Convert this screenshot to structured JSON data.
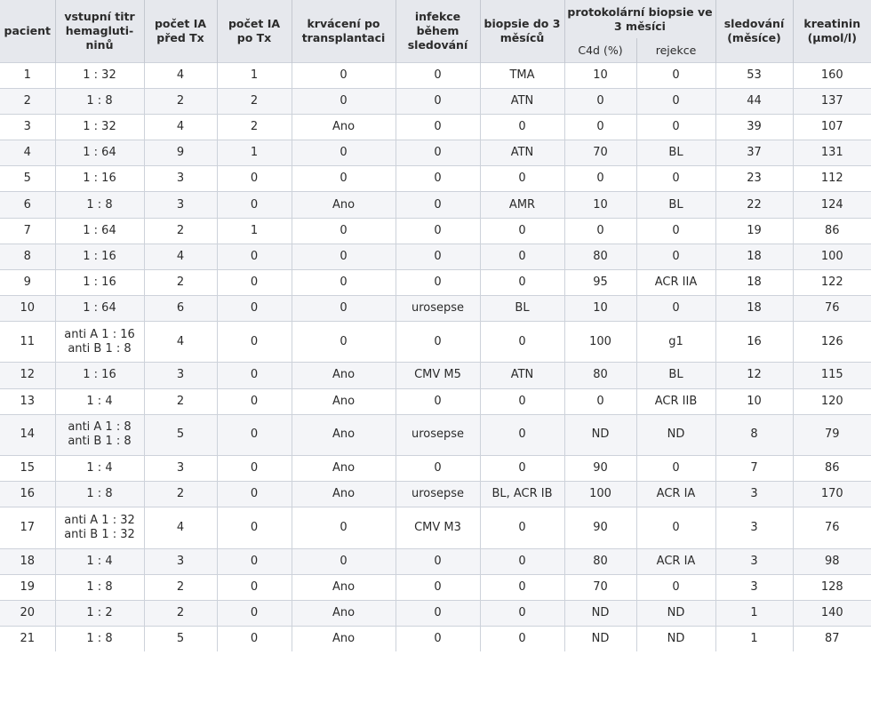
{
  "headers": {
    "pacient": "pacient",
    "titr": "vstupní titr hemagluti-ninů",
    "ia_pred": "počet IA před Tx",
    "ia_po": "počet IA po Tx",
    "krvaceni": "krvácení po transplantaci",
    "infekce": "infekce během sledování",
    "biopsie": "biopsie do 3 měsíců",
    "protokolarni": "protokolární biopsie ve 3 měsíci",
    "c4d": "C4d (%)",
    "rejekce": "rejekce",
    "sledovani": "sledování (měsíce)",
    "kreatinin": "kreatinin (μmol/l)"
  },
  "rows": [
    {
      "pacient": "1",
      "titr": [
        "1 : 32"
      ],
      "ia_pred": "4",
      "ia_po": "1",
      "krvaceni": "0",
      "infekce": "0",
      "biopsie": "TMA",
      "c4d": "10",
      "rejekce": "0",
      "sledovani": "53",
      "kreatinin": "160"
    },
    {
      "pacient": "2",
      "titr": [
        "1 : 8"
      ],
      "ia_pred": "2",
      "ia_po": "2",
      "krvaceni": "0",
      "infekce": "0",
      "biopsie": "ATN",
      "c4d": "0",
      "rejekce": "0",
      "sledovani": "44",
      "kreatinin": "137"
    },
    {
      "pacient": "3",
      "titr": [
        "1 : 32"
      ],
      "ia_pred": "4",
      "ia_po": "2",
      "krvaceni": "Ano",
      "infekce": "0",
      "biopsie": "0",
      "c4d": "0",
      "rejekce": "0",
      "sledovani": "39",
      "kreatinin": "107"
    },
    {
      "pacient": "4",
      "titr": [
        "1 : 64"
      ],
      "ia_pred": "9",
      "ia_po": "1",
      "krvaceni": "0",
      "infekce": "0",
      "biopsie": "ATN",
      "c4d": "70",
      "rejekce": "BL",
      "sledovani": "37",
      "kreatinin": "131"
    },
    {
      "pacient": "5",
      "titr": [
        "1 : 16"
      ],
      "ia_pred": "3",
      "ia_po": "0",
      "krvaceni": "0",
      "infekce": "0",
      "biopsie": "0",
      "c4d": "0",
      "rejekce": "0",
      "sledovani": "23",
      "kreatinin": "112"
    },
    {
      "pacient": "6",
      "titr": [
        "1 : 8"
      ],
      "ia_pred": "3",
      "ia_po": "0",
      "krvaceni": "Ano",
      "infekce": "0",
      "biopsie": "AMR",
      "c4d": "10",
      "rejekce": "BL",
      "sledovani": "22",
      "kreatinin": "124"
    },
    {
      "pacient": "7",
      "titr": [
        "1 : 64"
      ],
      "ia_pred": "2",
      "ia_po": "1",
      "krvaceni": "0",
      "infekce": "0",
      "biopsie": "0",
      "c4d": "0",
      "rejekce": "0",
      "sledovani": "19",
      "kreatinin": "86"
    },
    {
      "pacient": "8",
      "titr": [
        "1 : 16"
      ],
      "ia_pred": "4",
      "ia_po": "0",
      "krvaceni": "0",
      "infekce": "0",
      "biopsie": "0",
      "c4d": "80",
      "rejekce": "0",
      "sledovani": "18",
      "kreatinin": "100"
    },
    {
      "pacient": "9",
      "titr": [
        "1 : 16"
      ],
      "ia_pred": "2",
      "ia_po": "0",
      "krvaceni": "0",
      "infekce": "0",
      "biopsie": "0",
      "c4d": "95",
      "rejekce": "ACR IIA",
      "sledovani": "18",
      "kreatinin": "122"
    },
    {
      "pacient": "10",
      "titr": [
        "1 : 64"
      ],
      "ia_pred": "6",
      "ia_po": "0",
      "krvaceni": "0",
      "infekce": "urosepse",
      "biopsie": "BL",
      "c4d": "10",
      "rejekce": "0",
      "sledovani": "18",
      "kreatinin": "76"
    },
    {
      "pacient": "11",
      "titr": [
        "anti A 1 : 16",
        "anti B 1 : 8"
      ],
      "ia_pred": "4",
      "ia_po": "0",
      "krvaceni": "0",
      "infekce": "0",
      "biopsie": "0",
      "c4d": "100",
      "rejekce": "g1",
      "sledovani": "16",
      "kreatinin": "126"
    },
    {
      "pacient": "12",
      "titr": [
        "1 : 16"
      ],
      "ia_pred": "3",
      "ia_po": "0",
      "krvaceni": "Ano",
      "infekce": "CMV M5",
      "biopsie": "ATN",
      "c4d": "80",
      "rejekce": "BL",
      "sledovani": "12",
      "kreatinin": "115"
    },
    {
      "pacient": "13",
      "titr": [
        "1 : 4"
      ],
      "ia_pred": "2",
      "ia_po": "0",
      "krvaceni": "Ano",
      "infekce": "0",
      "biopsie": "0",
      "c4d": "0",
      "rejekce": "ACR IIB",
      "sledovani": "10",
      "kreatinin": "120"
    },
    {
      "pacient": "14",
      "titr": [
        "anti A 1 : 8",
        "anti B 1 : 8"
      ],
      "ia_pred": "5",
      "ia_po": "0",
      "krvaceni": "Ano",
      "infekce": "urosepse",
      "biopsie": "0",
      "c4d": "ND",
      "rejekce": "ND",
      "sledovani": "8",
      "kreatinin": "79"
    },
    {
      "pacient": "15",
      "titr": [
        "1 : 4"
      ],
      "ia_pred": "3",
      "ia_po": "0",
      "krvaceni": "Ano",
      "infekce": "0",
      "biopsie": "0",
      "c4d": "90",
      "rejekce": "0",
      "sledovani": "7",
      "kreatinin": "86"
    },
    {
      "pacient": "16",
      "titr": [
        "1 : 8"
      ],
      "ia_pred": "2",
      "ia_po": "0",
      "krvaceni": "Ano",
      "infekce": "urosepse",
      "biopsie": "BL, ACR IB",
      "c4d": "100",
      "rejekce": "ACR IA",
      "sledovani": "3",
      "kreatinin": "170"
    },
    {
      "pacient": "17",
      "titr": [
        "anti A 1 : 32",
        "anti B 1 : 32"
      ],
      "ia_pred": "4",
      "ia_po": "0",
      "krvaceni": "0",
      "infekce": "CMV M3",
      "biopsie": "0",
      "c4d": "90",
      "rejekce": "0",
      "sledovani": "3",
      "kreatinin": "76"
    },
    {
      "pacient": "18",
      "titr": [
        "1 : 4"
      ],
      "ia_pred": "3",
      "ia_po": "0",
      "krvaceni": "0",
      "infekce": "0",
      "biopsie": "0",
      "c4d": "80",
      "rejekce": "ACR IA",
      "sledovani": "3",
      "kreatinin": "98"
    },
    {
      "pacient": "19",
      "titr": [
        "1 : 8"
      ],
      "ia_pred": "2",
      "ia_po": "0",
      "krvaceni": "Ano",
      "infekce": "0",
      "biopsie": "0",
      "c4d": "70",
      "rejekce": "0",
      "sledovani": "3",
      "kreatinin": "128"
    },
    {
      "pacient": "20",
      "titr": [
        "1 : 2"
      ],
      "ia_pred": "2",
      "ia_po": "0",
      "krvaceni": "Ano",
      "infekce": "0",
      "biopsie": "0",
      "c4d": "ND",
      "rejekce": "ND",
      "sledovani": "1",
      "kreatinin": "140"
    },
    {
      "pacient": "21",
      "titr": [
        "1 : 8"
      ],
      "ia_pred": "5",
      "ia_po": "0",
      "krvaceni": "Ano",
      "infekce": "0",
      "biopsie": "0",
      "c4d": "ND",
      "rejekce": "ND",
      "sledovani": "1",
      "kreatinin": "87"
    }
  ]
}
